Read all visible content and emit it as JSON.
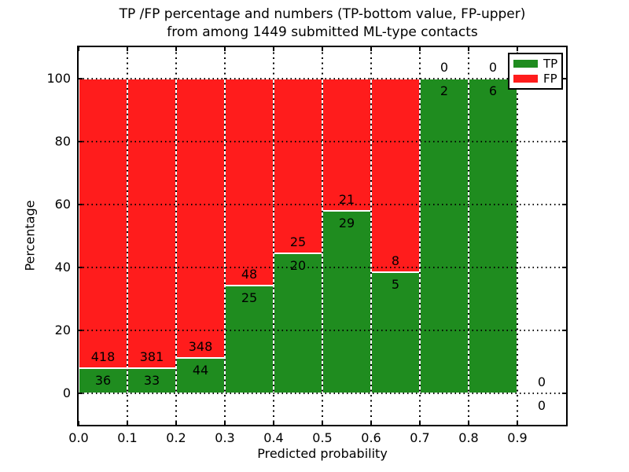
{
  "figure": {
    "title_line1": "TP /FP percentage and numbers (TP-bottom value, FP-upper)",
    "title_line2": "from among 1449 submitted ML-type contacts"
  },
  "chart_data": {
    "type": "bar",
    "variant": "stacked-percentage-histogram",
    "title": "TP /FP percentage and numbers (TP-bottom value, FP-upper) from among 1449 submitted ML-type contacts",
    "total_submitted_contacts": 1449,
    "xlabel": "Predicted probability",
    "ylabel": "Percentage",
    "xlim": [
      0.0,
      1.0
    ],
    "ylim": [
      -10,
      110
    ],
    "xticks": [
      "0.0",
      "0.1",
      "0.2",
      "0.3",
      "0.4",
      "0.5",
      "0.6",
      "0.7",
      "0.8",
      "0.9"
    ],
    "yticks": [
      0,
      20,
      40,
      60,
      80,
      100
    ],
    "grid": "dotted",
    "colors": {
      "tp": "#1f8c1f",
      "fp": "#ff1c1c",
      "bar_edge": "#ffffff",
      "text": "#000000"
    },
    "legend": {
      "position": "upper right",
      "entries": [
        {
          "label": "TP",
          "color": "#1f8c1f"
        },
        {
          "label": "FP",
          "color": "#ff1c1c"
        }
      ]
    },
    "series_note": "TP count printed below segment boundary, FP count printed above; bars show TP percentage (green, bottom) stacked with FP percentage (red, top) summing to 100%",
    "bins": [
      {
        "range": [
          0.0,
          0.1
        ],
        "tp": 36,
        "fp": 418,
        "tp_pct": 7.9
      },
      {
        "range": [
          0.1,
          0.2
        ],
        "tp": 33,
        "fp": 381,
        "tp_pct": 8.0
      },
      {
        "range": [
          0.2,
          0.3
        ],
        "tp": 44,
        "fp": 348,
        "tp_pct": 11.2
      },
      {
        "range": [
          0.3,
          0.4
        ],
        "tp": 25,
        "fp": 48,
        "tp_pct": 34.2
      },
      {
        "range": [
          0.4,
          0.5
        ],
        "tp": 20,
        "fp": 25,
        "tp_pct": 44.4
      },
      {
        "range": [
          0.5,
          0.6
        ],
        "tp": 29,
        "fp": 21,
        "tp_pct": 58.0
      },
      {
        "range": [
          0.6,
          0.7
        ],
        "tp": 5,
        "fp": 8,
        "tp_pct": 38.5
      },
      {
        "range": [
          0.7,
          0.8
        ],
        "tp": 2,
        "fp": 0,
        "tp_pct": 100.0
      },
      {
        "range": [
          0.8,
          0.9
        ],
        "tp": 6,
        "fp": 0,
        "tp_pct": 100.0
      },
      {
        "range": [
          0.9,
          1.0
        ],
        "tp": 0,
        "fp": 0,
        "tp_pct": 0.0
      }
    ]
  }
}
